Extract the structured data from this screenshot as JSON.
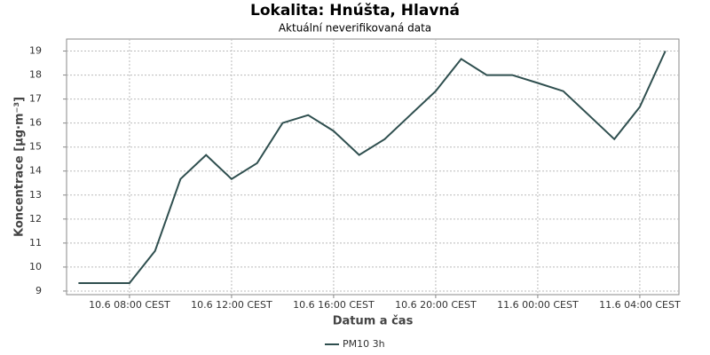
{
  "chart_data": {
    "type": "line",
    "title": "Lokalita: Hnúšta, Hlavná",
    "subtitle": "Aktuální neverifikovaná data",
    "x_label": "Datum a čas",
    "y_label": "Koncentrace [µg·m⁻³]",
    "x": [
      "10.6 06:00",
      "10.6 07:00",
      "10.6 08:00",
      "10.6 09:00",
      "10.6 10:00",
      "10.6 11:00",
      "10.6 12:00",
      "10.6 13:00",
      "10.6 14:00",
      "10.6 15:00",
      "10.6 16:00",
      "10.6 17:00",
      "10.6 18:00",
      "10.6 19:00",
      "10.6 20:00",
      "10.6 21:00",
      "10.6 22:00",
      "10.6 23:00",
      "11.6 00:00",
      "11.6 01:00",
      "11.6 02:00",
      "11.6 03:00",
      "11.6 04:00",
      "11.6 05:00"
    ],
    "series": [
      {
        "name": "PM10 3h",
        "color": "#2f4f4f",
        "values": [
          9.33,
          9.33,
          9.33,
          10.67,
          13.67,
          14.67,
          13.67,
          14.33,
          16,
          16.33,
          15.67,
          14.67,
          15.33,
          16.33,
          17.33,
          18.67,
          18,
          18,
          17.67,
          17.33,
          16.33,
          15.33,
          16.67,
          19
        ]
      }
    ],
    "xlim": [
      "10.6 05:32",
      "11.6 05:32"
    ],
    "xticks": [
      {
        "value": "10.6 08:00",
        "label": "10.6 08:00 CEST"
      },
      {
        "value": "10.6 12:00",
        "label": "10.6 12:00 CEST"
      },
      {
        "value": "10.6 16:00",
        "label": "10.6 16:00 CEST"
      },
      {
        "value": "10.6 20:00",
        "label": "10.6 20:00 CEST"
      },
      {
        "value": "11.6 00:00",
        "label": "11.6 00:00 CEST"
      },
      {
        "value": "11.6 04:00",
        "label": "11.6 04:00 CEST"
      }
    ],
    "ylim": [
      8.85,
      19.5
    ],
    "yticks": [
      9,
      10,
      11,
      12,
      13,
      14,
      15,
      16,
      17,
      18,
      19
    ],
    "grid": true,
    "legend": "bottom"
  }
}
